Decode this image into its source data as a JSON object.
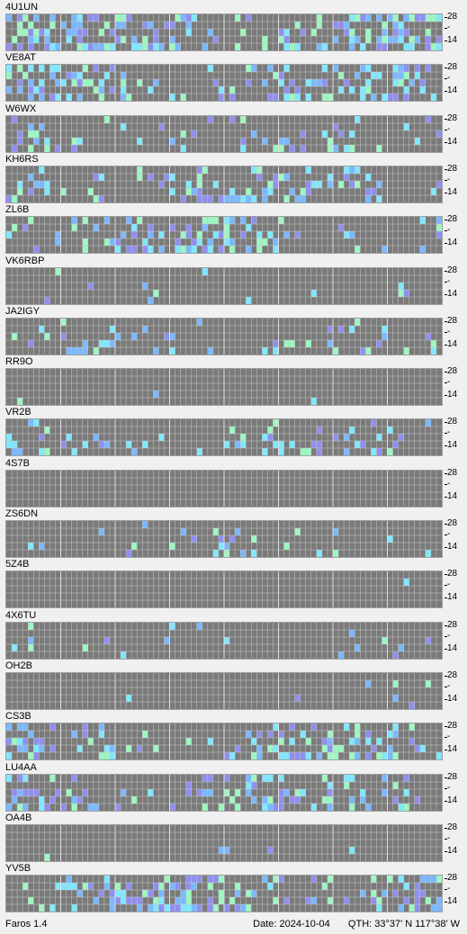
{
  "app": {
    "version_label": "Faros 1.4"
  },
  "status": {
    "date_label": "Date: 2024-10-04",
    "qth_label": "QTH: 33°37' N  117°38' W"
  },
  "scale": {
    "top_label": "28",
    "mid_label": "-",
    "bottom_label": "14"
  },
  "colors": {
    "grid_bg": "#7a7a7a",
    "grid_line": "#c8c8c8",
    "weak": "#8f8ff0",
    "fair": "#7ab8ff",
    "good": "#7fe8ff",
    "strong": "#9cf7c0"
  },
  "stations": [
    {
      "name": "4U1UN",
      "levels": [
        0.55,
        0.35,
        0.6,
        0.45,
        0.65
      ]
    },
    {
      "name": "VE8AT",
      "levels": [
        0.35,
        0.25,
        0.45,
        0.35,
        0.5
      ]
    },
    {
      "name": "W6WX",
      "levels": [
        0.15,
        0.1,
        0.25,
        0.3,
        0.35
      ]
    },
    {
      "name": "KH6RS",
      "levels": [
        0.35,
        0.3,
        0.5,
        0.45,
        0.55
      ]
    },
    {
      "name": "ZL6B",
      "levels": [
        0.3,
        0.3,
        0.4,
        0.35,
        0.55
      ]
    },
    {
      "name": "VK6RBP",
      "levels": [
        0.05,
        0.05,
        0.08,
        0.1,
        0.12
      ]
    },
    {
      "name": "JA2IGY",
      "levels": [
        0.1,
        0.12,
        0.2,
        0.2,
        0.3
      ]
    },
    {
      "name": "RR9O",
      "levels": [
        0.0,
        0.0,
        0.02,
        0.03,
        0.02
      ]
    },
    {
      "name": "VR2B",
      "levels": [
        0.1,
        0.12,
        0.2,
        0.25,
        0.25
      ]
    },
    {
      "name": "4S7B",
      "levels": [
        0.0,
        0.0,
        0.0,
        0.0,
        0.0
      ]
    },
    {
      "name": "ZS6DN",
      "levels": [
        0.08,
        0.08,
        0.15,
        0.15,
        0.15
      ]
    },
    {
      "name": "5Z4B",
      "levels": [
        0.0,
        0.02,
        0.03,
        0.0,
        0.0
      ]
    },
    {
      "name": "4X6TU",
      "levels": [
        0.03,
        0.05,
        0.05,
        0.08,
        0.06
      ]
    },
    {
      "name": "OH2B",
      "levels": [
        0.0,
        0.02,
        0.02,
        0.02,
        0.01
      ]
    },
    {
      "name": "CS3B",
      "levels": [
        0.25,
        0.3,
        0.35,
        0.35,
        0.45
      ]
    },
    {
      "name": "LU4AA",
      "levels": [
        0.35,
        0.3,
        0.45,
        0.4,
        0.6
      ]
    },
    {
      "name": "OA4B",
      "levels": [
        0.0,
        0.02,
        0.04,
        0.06,
        0.06
      ]
    },
    {
      "name": "YV5B",
      "levels": [
        0.45,
        0.4,
        0.55,
        0.6,
        0.7
      ]
    }
  ]
}
